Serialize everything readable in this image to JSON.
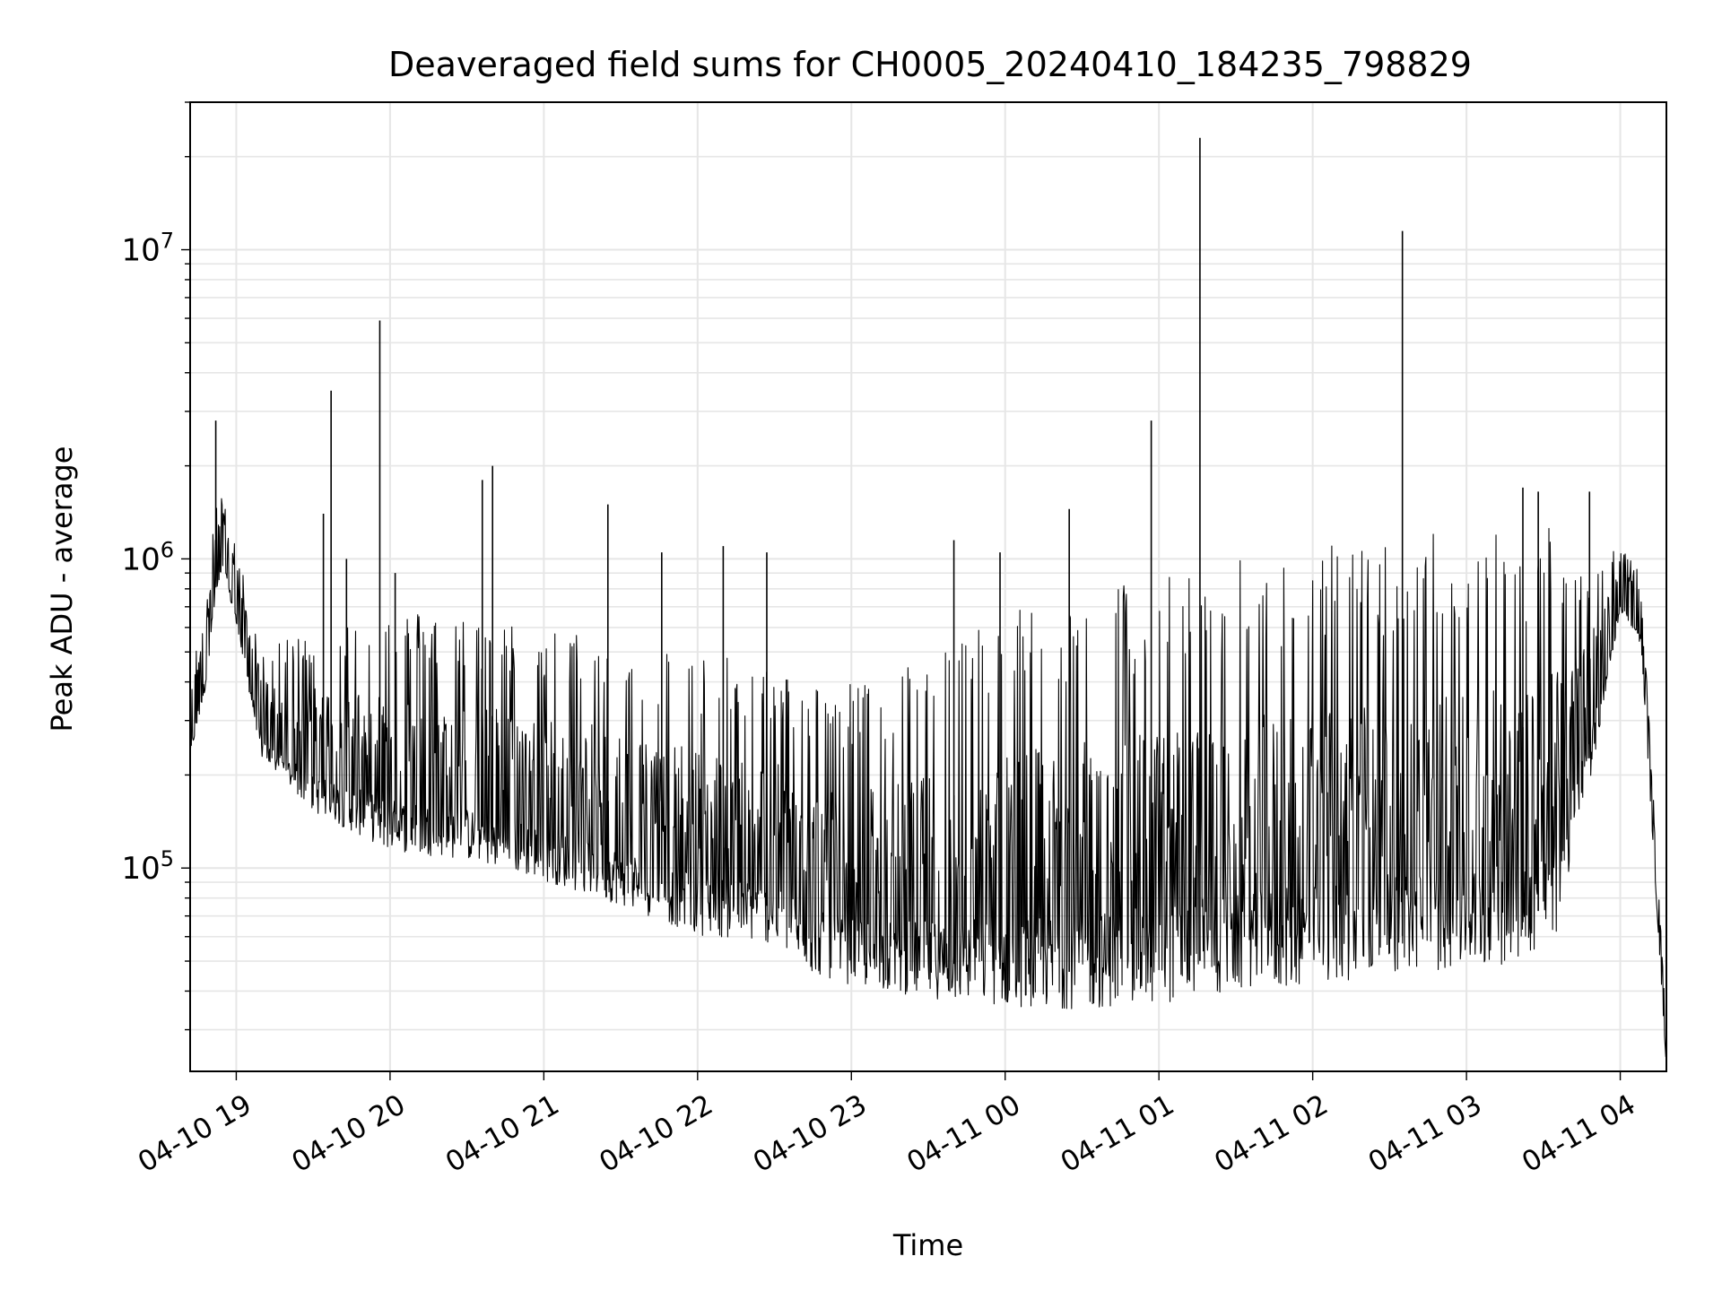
{
  "chart_data": {
    "type": "line",
    "title": "Deaveraged field sums for CH0005_20240410_184235_798829",
    "xlabel": "Time",
    "ylabel": "Peak ADU - average",
    "y_scale": "log",
    "ylim": [
      22000,
      30000000
    ],
    "xlim": [
      "2024-04-10 18:42",
      "2024-04-11 04:18"
    ],
    "grid": true,
    "line_color": "#000000",
    "grid_color": "#e6e6e6",
    "x_tick_labels": [
      "04-10 19",
      "04-10 20",
      "04-10 21",
      "04-10 22",
      "04-10 23",
      "04-11 00",
      "04-11 01",
      "04-11 02",
      "04-11 03",
      "04-11 04"
    ],
    "x_ticks": [
      "2024-04-10 19:00",
      "2024-04-10 20:00",
      "2024-04-10 21:00",
      "2024-04-10 22:00",
      "2024-04-10 23:00",
      "2024-04-11 00:00",
      "2024-04-11 01:00",
      "2024-04-11 02:00",
      "2024-04-11 03:00",
      "2024-04-11 04:00"
    ],
    "y_tick_labels": [
      {
        "value": 100000,
        "base": "10",
        "exp": "5"
      },
      {
        "value": 1000000,
        "base": "10",
        "exp": "6"
      },
      {
        "value": 10000000,
        "base": "10",
        "exp": "7"
      }
    ],
    "series": [
      {
        "trend": {
          "x": [
            "2024-04-10 18:42",
            "2024-04-10 18:48",
            "2024-04-10 18:52",
            "2024-04-10 18:55",
            "2024-04-10 19:00",
            "2024-04-10 19:10",
            "2024-04-10 19:30",
            "2024-04-10 20:00",
            "2024-04-10 20:30",
            "2024-04-10 21:00",
            "2024-04-10 21:30",
            "2024-04-10 22:00",
            "2024-04-10 22:30",
            "2024-04-10 22:45",
            "2024-04-10 23:00",
            "2024-04-10 23:30",
            "2024-04-11 00:00",
            "2024-04-11 00:30",
            "2024-04-11 01:00",
            "2024-04-11 01:30",
            "2024-04-11 02:00",
            "2024-04-11 02:30",
            "2024-04-11 03:00",
            "2024-04-11 03:20",
            "2024-04-11 03:35",
            "2024-04-11 03:50",
            "2024-04-11 04:00",
            "2024-04-11 04:08",
            "2024-04-11 04:18"
          ],
          "base": [
            300000,
            500000,
            1000000,
            1200000,
            800000,
            300000,
            200000,
            150000,
            140000,
            120000,
            100000,
            80000,
            75000,
            60000,
            55000,
            50000,
            47000,
            46000,
            48000,
            52000,
            55000,
            60000,
            62000,
            65000,
            80000,
            300000,
            900000,
            700000,
            30000
          ],
          "peak": [
            400000,
            800000,
            1500000,
            1600000,
            1100000,
            500000,
            600000,
            700000,
            650000,
            600000,
            550000,
            500000,
            450000,
            400000,
            400000,
            500000,
            700000,
            800000,
            900000,
            1000000,
            1100000,
            1200000,
            1250000,
            1300000,
            1350000,
            1000000,
            1100000,
            900000,
            30000
          ]
        },
        "spikes": [
          {
            "x": "2024-04-10 18:52",
            "y": 2800000
          },
          {
            "x": "2024-04-10 19:34",
            "y": 1400000
          },
          {
            "x": "2024-04-10 19:37",
            "y": 3500000
          },
          {
            "x": "2024-04-10 19:43",
            "y": 1000000
          },
          {
            "x": "2024-04-10 19:56",
            "y": 5900000
          },
          {
            "x": "2024-04-10 20:02",
            "y": 900000
          },
          {
            "x": "2024-04-10 20:36",
            "y": 1800000
          },
          {
            "x": "2024-04-10 20:40",
            "y": 2000000
          },
          {
            "x": "2024-04-10 21:25",
            "y": 1500000
          },
          {
            "x": "2024-04-10 21:46",
            "y": 1050000
          },
          {
            "x": "2024-04-10 22:10",
            "y": 1100000
          },
          {
            "x": "2024-04-10 22:27",
            "y": 1050000
          },
          {
            "x": "2024-04-10 23:40",
            "y": 1150000
          },
          {
            "x": "2024-04-10 23:58",
            "y": 1050000
          },
          {
            "x": "2024-04-11 00:25",
            "y": 1450000
          },
          {
            "x": "2024-04-11 00:57",
            "y": 2800000
          },
          {
            "x": "2024-04-11 01:16",
            "y": 23000000
          },
          {
            "x": "2024-04-11 02:35",
            "y": 11500000
          },
          {
            "x": "2024-04-11 03:22",
            "y": 1700000
          },
          {
            "x": "2024-04-11 03:28",
            "y": 1650000
          },
          {
            "x": "2024-04-11 03:48",
            "y": 1650000
          }
        ]
      }
    ]
  }
}
